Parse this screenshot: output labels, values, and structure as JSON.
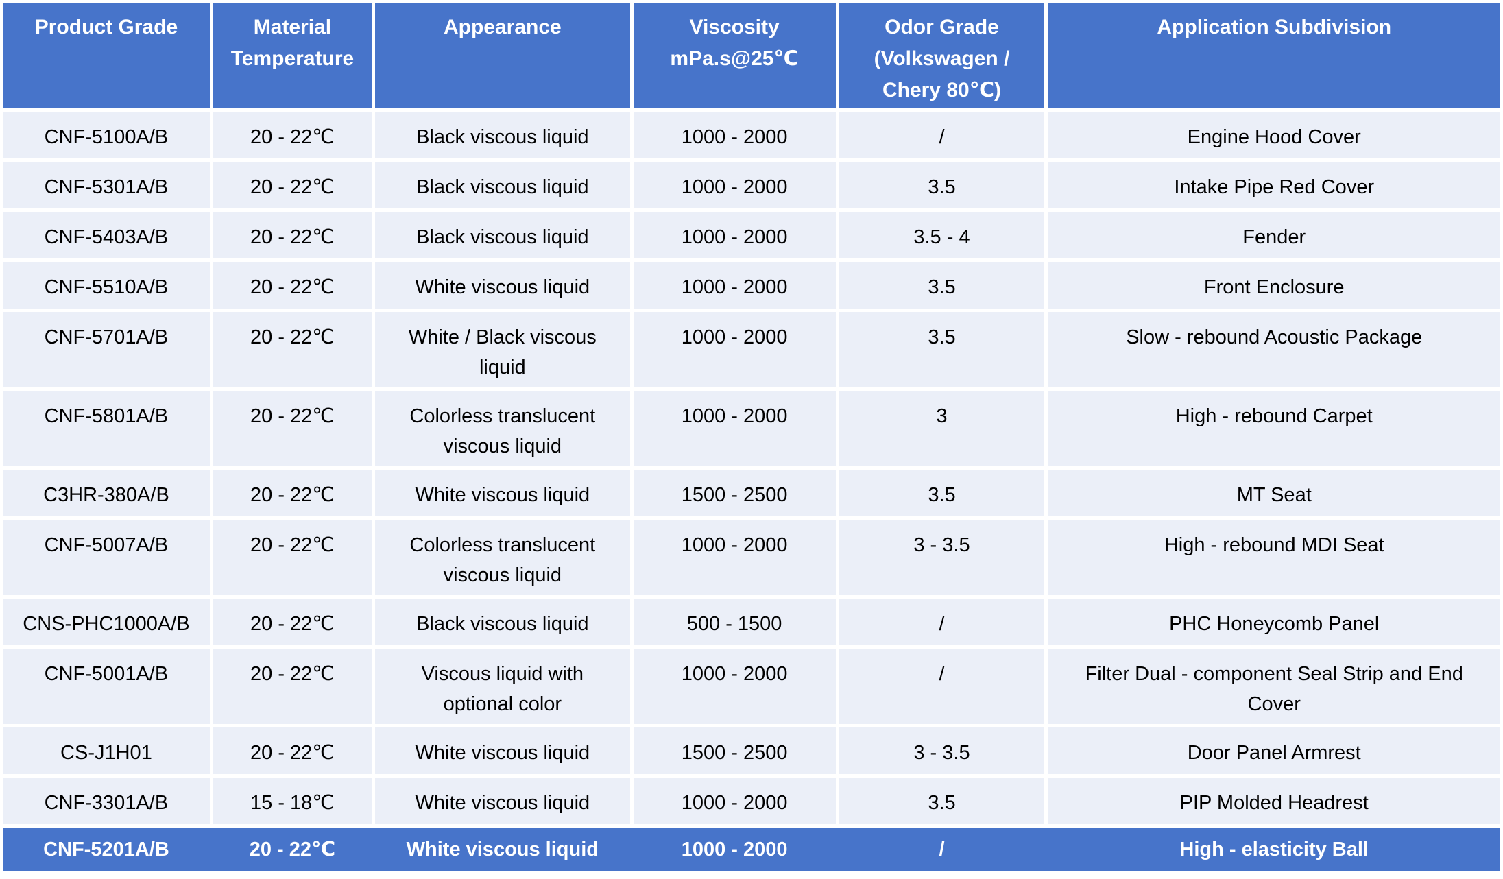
{
  "colors": {
    "accent": "#4774CA",
    "row_bg": "#EBEFF8",
    "gridline": "#FFFFFF",
    "header_text": "#FFFFFF",
    "body_text": "#000000"
  },
  "table": {
    "columns": [
      {
        "label": "Product Grade"
      },
      {
        "label": "Material\nTemperature"
      },
      {
        "label": "Appearance"
      },
      {
        "label": "Viscosity\nmPa.s@25℃"
      },
      {
        "label": "Odor Grade\n(Volkswagen /\nChery 80℃)"
      },
      {
        "label": "Application Subdivision"
      }
    ],
    "rows": [
      {
        "tall": false,
        "highlight": false,
        "cells": [
          "CNF-5100A/B",
          "20 - 22℃",
          "Black viscous liquid",
          "1000 - 2000",
          "/",
          "Engine Hood Cover"
        ]
      },
      {
        "tall": false,
        "highlight": false,
        "cells": [
          "CNF-5301A/B",
          "20 - 22℃",
          "Black viscous liquid",
          "1000 - 2000",
          "3.5",
          "Intake Pipe Red Cover"
        ]
      },
      {
        "tall": false,
        "highlight": false,
        "cells": [
          "CNF-5403A/B",
          "20 - 22℃",
          "Black viscous liquid",
          "1000 - 2000",
          "3.5 - 4",
          "Fender"
        ]
      },
      {
        "tall": false,
        "highlight": false,
        "cells": [
          "CNF-5510A/B",
          "20 - 22℃",
          "White viscous liquid",
          "1000 - 2000",
          "3.5",
          "Front Enclosure"
        ]
      },
      {
        "tall": true,
        "highlight": false,
        "cells": [
          "CNF-5701A/B",
          "20 - 22℃",
          "White / Black viscous\nliquid",
          "1000 - 2000",
          "3.5",
          "Slow - rebound Acoustic Package"
        ]
      },
      {
        "tall": true,
        "highlight": false,
        "cells": [
          "CNF-5801A/B",
          "20 - 22℃",
          "Colorless translucent\nviscous liquid",
          "1000 - 2000",
          "3",
          "High - rebound Carpet"
        ]
      },
      {
        "tall": false,
        "highlight": false,
        "cells": [
          "C3HR-380A/B",
          "20 - 22℃",
          "White viscous liquid",
          "1500 - 2500",
          "3.5",
          "MT Seat"
        ]
      },
      {
        "tall": true,
        "highlight": false,
        "cells": [
          "CNF-5007A/B",
          "20 - 22℃",
          "Colorless translucent\nviscous liquid",
          "1000 - 2000",
          "3 - 3.5",
          "High - rebound MDI Seat"
        ]
      },
      {
        "tall": false,
        "highlight": false,
        "cells": [
          "CNS-PHC1000A/B",
          "20 - 22℃",
          "Black viscous liquid",
          "500 - 1500",
          "/",
          "PHC Honeycomb Panel"
        ]
      },
      {
        "tall": true,
        "highlight": false,
        "cells": [
          "CNF-5001A/B",
          "20 - 22℃",
          "Viscous liquid with\noptional color",
          "1000 - 2000",
          "/",
          "Filter Dual - component Seal Strip and End\nCover"
        ]
      },
      {
        "tall": false,
        "highlight": false,
        "cells": [
          "CS-J1H01",
          "20 - 22℃",
          "White viscous liquid",
          "1500 - 2500",
          "3 - 3.5",
          "Door Panel Armrest"
        ]
      },
      {
        "tall": false,
        "highlight": false,
        "cells": [
          "CNF-3301A/B",
          "15 - 18℃",
          "White viscous liquid",
          "1000 - 2000",
          "3.5",
          "PIP Molded Headrest"
        ]
      },
      {
        "tall": false,
        "highlight": true,
        "cells": [
          "CNF-5201A/B",
          "20 - 22℃",
          "White viscous liquid",
          "1000 - 2000",
          "/",
          "High - elasticity Ball"
        ]
      }
    ]
  }
}
